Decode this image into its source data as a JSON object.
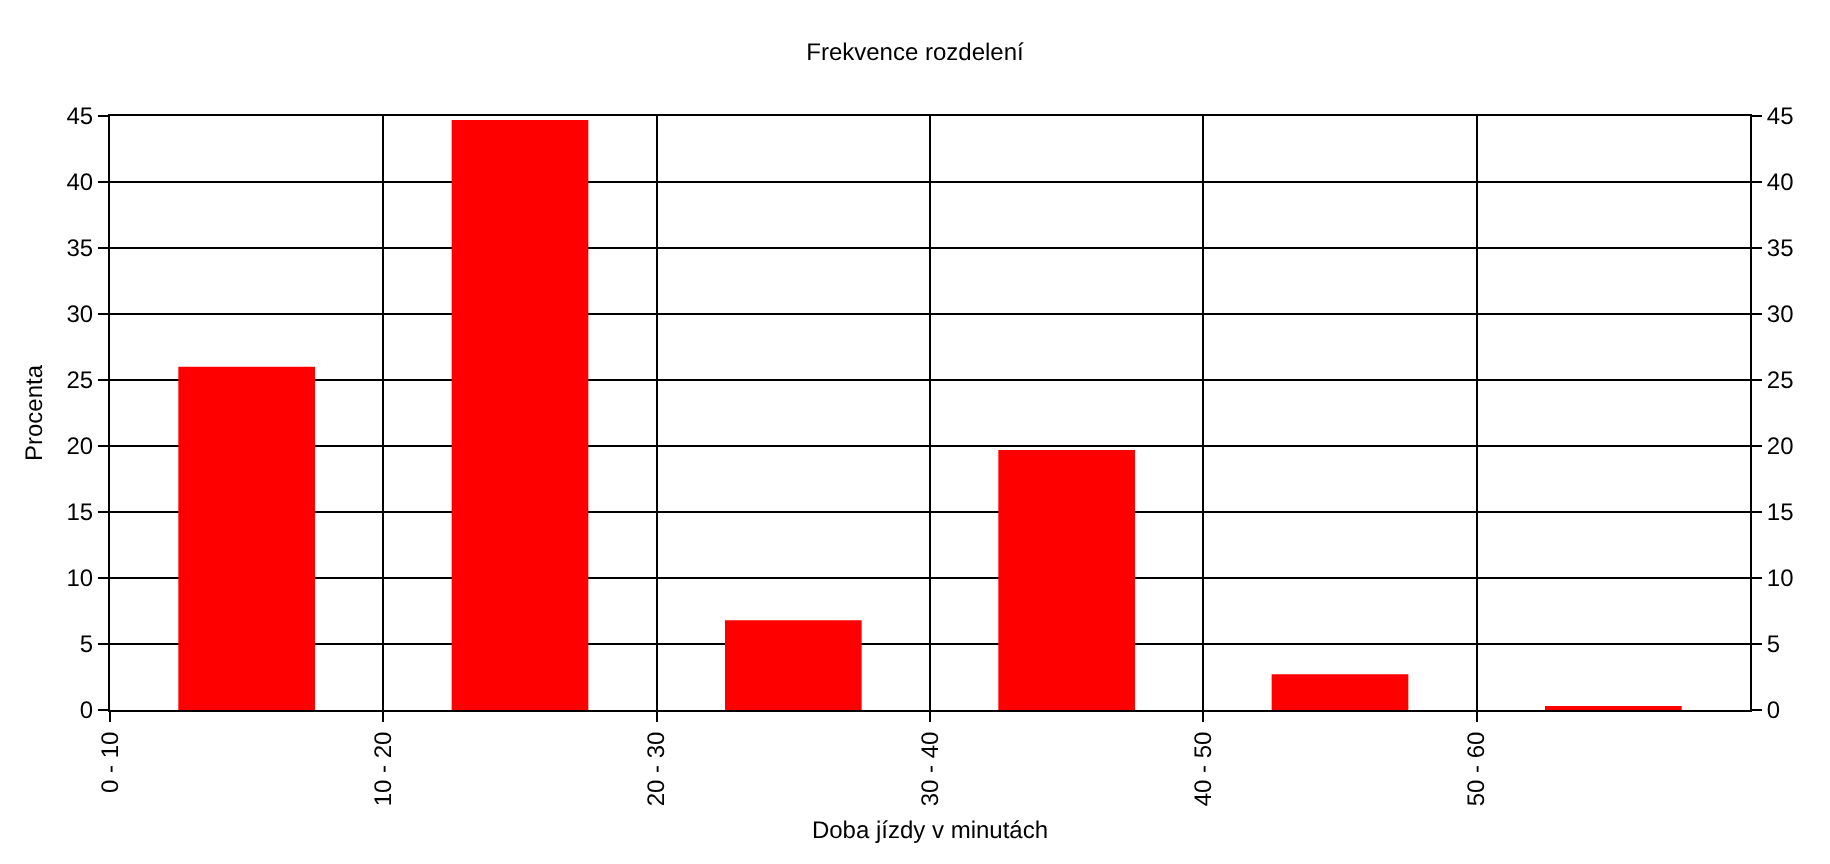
{
  "chart_data": {
    "type": "bar",
    "title": "Frekvence rozdelení",
    "xlabel": "Doba jízdy v minutách",
    "ylabel": "Procenta",
    "categories": [
      "0 - 10",
      "10 - 20",
      "20 - 30",
      "30 - 40",
      "40 - 50",
      "50 - 60"
    ],
    "values": [
      26,
      44.7,
      6.8,
      19.7,
      2.7,
      0.3
    ],
    "color": "#ff0000",
    "ylim": [
      0,
      45
    ],
    "yticks": [
      0,
      5,
      10,
      15,
      20,
      25,
      30,
      35,
      40,
      45
    ],
    "y2lim": [
      0,
      45
    ],
    "y2ticks": [
      0,
      5,
      10,
      15,
      20,
      25,
      30,
      35,
      40,
      45
    ],
    "grid": true
  }
}
